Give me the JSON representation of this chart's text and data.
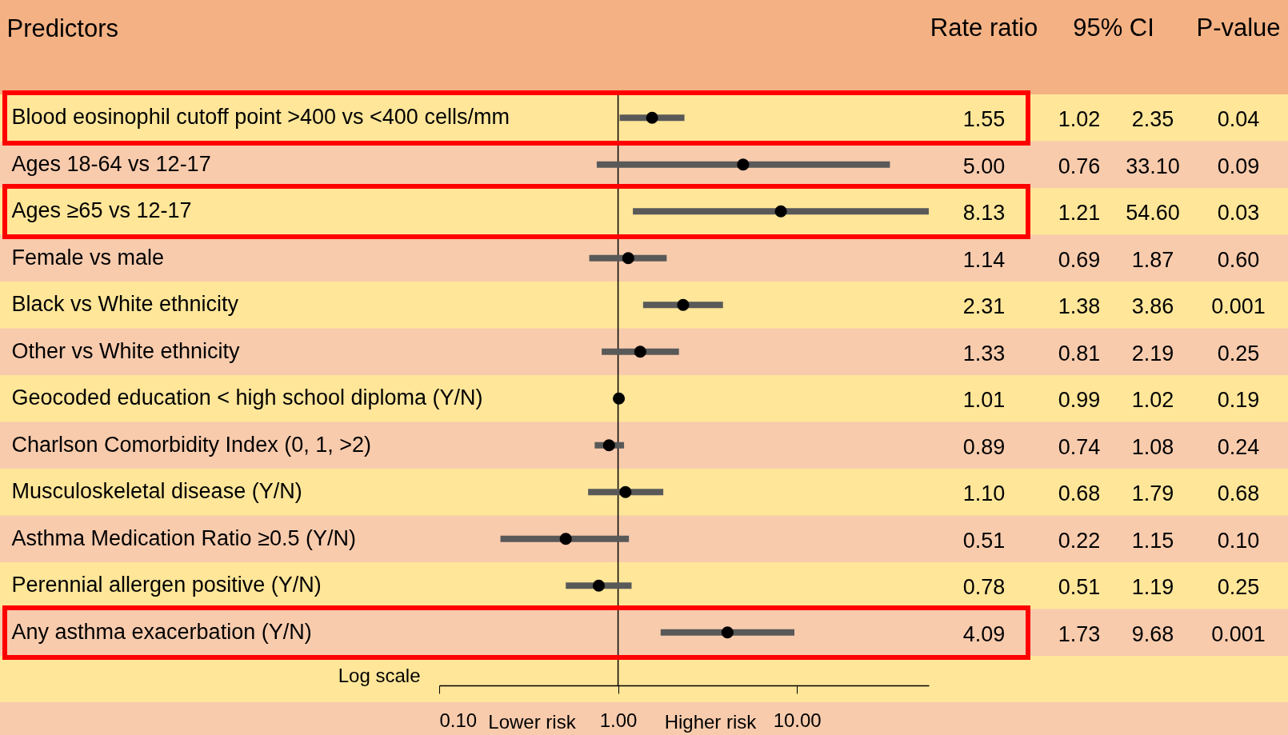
{
  "chart_data": {
    "type": "scatter",
    "orientation": "horizontal",
    "log": "x",
    "ylabel": "Predictors",
    "xlabel": "Log scale",
    "categories": [
      "Blood eosinophil cutoff point >400 vs <400 cells/mm",
      "Ages 18-64 vs 12-17",
      "Ages ≥65 vs 12-17",
      "Female vs male",
      "Black vs White ethnicity",
      "Other vs White ethnicity",
      "Geocoded education < high school diploma (Y/N)",
      "Charlson Comorbidity Index (0, 1, >2)",
      "Musculoskeletal disease (Y/N)",
      "Asthma Medication Ratio ≥0.5 (Y/N)",
      "Perennial allergen positive (Y/N)",
      "Any asthma exacerbation (Y/N)"
    ],
    "values": [
      1.55,
      5.0,
      8.13,
      1.14,
      2.31,
      1.33,
      1.01,
      0.89,
      1.1,
      0.51,
      0.78,
      4.09
    ],
    "value_labels": [
      "1.55",
      "5.00",
      "8.13",
      "1.14",
      "2.31",
      "1.33",
      "1.01",
      "0.89",
      "1.10",
      "0.51",
      "0.78",
      "4.09"
    ],
    "errors": [
      [
        1.02,
        2.35
      ],
      [
        0.76,
        33.1
      ],
      [
        1.21,
        54.6
      ],
      [
        0.69,
        1.87
      ],
      [
        1.38,
        3.86
      ],
      [
        0.81,
        2.19
      ],
      [
        0.99,
        1.02
      ],
      [
        0.74,
        1.08
      ],
      [
        0.68,
        1.79
      ],
      [
        0.22,
        1.15
      ],
      [
        0.51,
        1.19
      ],
      [
        1.73,
        9.68
      ]
    ],
    "color": "#000000",
    "marker": "circle",
    "xlim": [
      0.1,
      54.6
    ],
    "xticks": [
      {
        "value": 0.1,
        "label": "0.10"
      },
      {
        "value": 1,
        "label": "1.00"
      },
      {
        "value": 10,
        "label": "10.00"
      }
    ],
    "ref_lines": [
      {
        "axis": "x",
        "value": 1,
        "color": "#000000"
      }
    ],
    "annotations": [
      "Rate ratio",
      "95% CI",
      "P-value",
      "Lower risk",
      "Higher risk",
      "1.02",
      "2.35",
      "0.04",
      "0.76",
      "33.10",
      "0.09",
      "1.21",
      "54.60",
      "0.03",
      "0.69",
      "1.87",
      "0.60",
      "1.38",
      "3.86",
      "0.001",
      "0.81",
      "2.19",
      "0.25",
      "0.99",
      "1.02",
      "0.19",
      "0.74",
      "1.08",
      "0.24",
      "0.68",
      "1.79",
      "0.68",
      "0.22",
      "1.15",
      "0.10",
      "0.51",
      "1.19",
      "0.25",
      "1.73",
      "9.68",
      "0.001"
    ]
  }
}
